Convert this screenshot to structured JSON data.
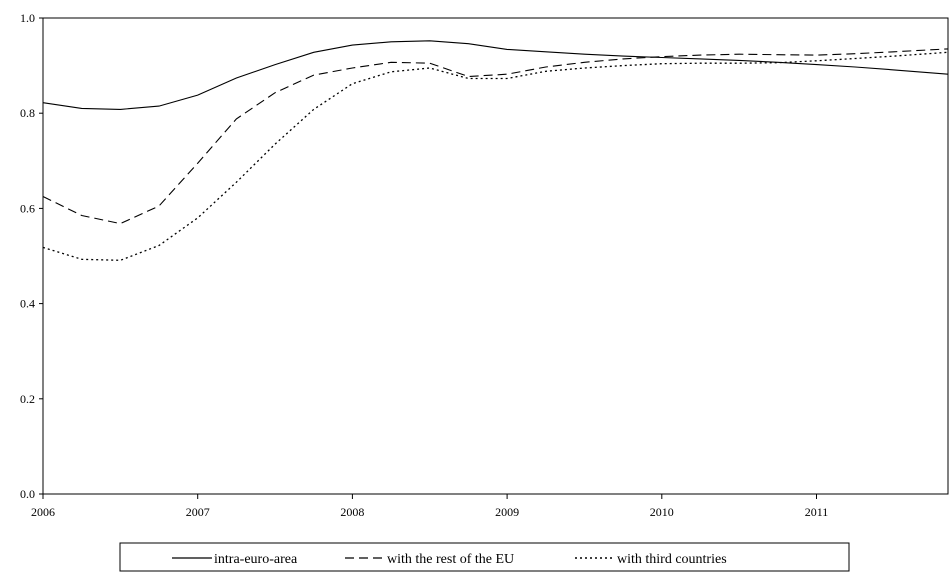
{
  "chart_data": {
    "type": "line",
    "title": "",
    "xlabel": "",
    "ylabel": "",
    "xlim": [
      2006,
      2011.85
    ],
    "ylim": [
      0,
      1.0
    ],
    "x_ticks": [
      2006,
      2007,
      2008,
      2009,
      2010,
      2011
    ],
    "x_tick_labels": [
      "2006",
      "2007",
      "2008",
      "2009",
      "2010",
      "2011"
    ],
    "y_ticks": [
      0,
      0.2,
      0.4,
      0.6,
      0.8,
      1.0
    ],
    "y_tick_labels": [
      "0.0",
      "0.2",
      "0.4",
      "0.6",
      "0.8",
      "1.0"
    ],
    "grid": false,
    "legend_position": "bottom",
    "series": [
      {
        "name": "intra-euro-area",
        "line_style": "solid",
        "color": "#000000",
        "x": [
          2006.0,
          2006.25,
          2006.5,
          2006.75,
          2007.0,
          2007.25,
          2007.5,
          2007.75,
          2008.0,
          2008.25,
          2008.5,
          2008.75,
          2009.0,
          2009.25,
          2009.5,
          2009.75,
          2010.0,
          2010.25,
          2010.5,
          2010.75,
          2011.0,
          2011.25,
          2011.5,
          2011.85
        ],
        "values": [
          0.822,
          0.81,
          0.808,
          0.815,
          0.838,
          0.874,
          0.902,
          0.928,
          0.943,
          0.95,
          0.952,
          0.946,
          0.934,
          0.929,
          0.924,
          0.92,
          0.917,
          0.914,
          0.911,
          0.907,
          0.902,
          0.897,
          0.891,
          0.882
        ]
      },
      {
        "name": "with the rest of the EU",
        "line_style": "dashed",
        "color": "#000000",
        "x": [
          2006.0,
          2006.25,
          2006.5,
          2006.75,
          2007.0,
          2007.25,
          2007.5,
          2007.75,
          2008.0,
          2008.25,
          2008.5,
          2008.75,
          2009.0,
          2009.25,
          2009.5,
          2009.75,
          2010.0,
          2010.25,
          2010.5,
          2010.75,
          2011.0,
          2011.25,
          2011.5,
          2011.85
        ],
        "values": [
          0.625,
          0.585,
          0.568,
          0.605,
          0.695,
          0.788,
          0.843,
          0.88,
          0.895,
          0.907,
          0.905,
          0.877,
          0.882,
          0.897,
          0.907,
          0.914,
          0.919,
          0.922,
          0.924,
          0.923,
          0.922,
          0.925,
          0.929,
          0.935
        ]
      },
      {
        "name": "with third countries",
        "line_style": "dotted",
        "color": "#000000",
        "x": [
          2006.0,
          2006.25,
          2006.5,
          2006.75,
          2007.0,
          2007.25,
          2007.5,
          2007.75,
          2008.0,
          2008.25,
          2008.5,
          2008.75,
          2009.0,
          2009.25,
          2009.5,
          2009.75,
          2010.0,
          2010.25,
          2010.5,
          2010.75,
          2011.0,
          2011.25,
          2011.5,
          2011.85
        ],
        "values": [
          0.518,
          0.493,
          0.491,
          0.522,
          0.58,
          0.655,
          0.735,
          0.808,
          0.862,
          0.887,
          0.895,
          0.873,
          0.873,
          0.888,
          0.895,
          0.9,
          0.904,
          0.905,
          0.905,
          0.906,
          0.91,
          0.915,
          0.92,
          0.928
        ]
      }
    ]
  }
}
